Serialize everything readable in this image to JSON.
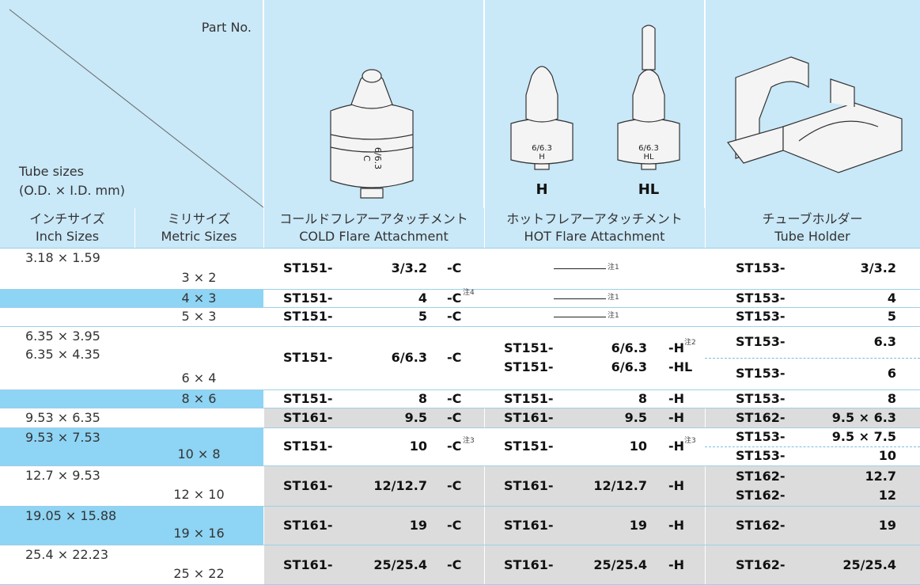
{
  "header": {
    "part_no": "Part No.",
    "tube_sizes": [
      "Tube sizes",
      "(O.D. × I.D. mm)"
    ],
    "cold_image": [
      "6/6.3",
      "C"
    ],
    "hot_image": [
      [
        "6/6.3",
        "H"
      ],
      [
        "6/6.3",
        "HL"
      ]
    ],
    "hot_captions": [
      "H",
      "HL"
    ]
  },
  "columns": [
    {
      "jp": "インチサイズ",
      "en": "Inch Sizes"
    },
    {
      "jp": "ミリサイズ",
      "en": "Metric Sizes"
    },
    {
      "jp": "コールドフレアーアタッチメント",
      "en": "COLD Flare Attachment"
    },
    {
      "jp": "ホットフレアーアタッチメント",
      "en": "HOT Flare Attachment"
    },
    {
      "jp": "チューブホルダー",
      "en": "Tube Holder"
    }
  ],
  "rows": [
    {
      "inch": [
        "3.18 × 1.59"
      ],
      "metric": "3 × 2",
      "cold": {
        "prefix": "ST151-",
        "size": "3/3.2",
        "suffix": "-C"
      },
      "hot": {
        "note": "注1"
      },
      "holder": [
        {
          "prefix": "ST153-",
          "size": "3/3.2"
        }
      ]
    },
    {
      "inch": [],
      "metric": "4 × 3",
      "cold": {
        "prefix": "ST151-",
        "size": "4",
        "suffix": "-C",
        "note": "注4"
      },
      "hot": {
        "note": "注1"
      },
      "holder": [
        {
          "prefix": "ST153-",
          "size": "4"
        }
      ]
    },
    {
      "inch": [],
      "metric": "5 × 3",
      "cold": {
        "prefix": "ST151-",
        "size": "5",
        "suffix": "-C"
      },
      "hot": {
        "note": "注1"
      },
      "holder": [
        {
          "prefix": "ST153-",
          "size": "5"
        }
      ]
    },
    {
      "inch": [
        "6.35 × 3.95",
        "6.35 × 4.35"
      ],
      "metric": "6 × 4",
      "cold": {
        "prefix": "ST151-",
        "size": "6/6.3",
        "suffix": "-C"
      },
      "hot": {
        "entries": [
          {
            "prefix": "ST151-",
            "size": "6/6.3",
            "suffix": "-H",
            "note": "注2"
          },
          {
            "prefix": "ST151-",
            "size": "6/6.3",
            "suffix": "-HL"
          }
        ]
      },
      "holder": [
        {
          "prefix": "ST153-",
          "size": "6.3"
        },
        {
          "prefix": "ST153-",
          "size": "6"
        }
      ]
    },
    {
      "inch": [],
      "metric": "8 × 6",
      "cold": {
        "prefix": "ST151-",
        "size": "8",
        "suffix": "-C"
      },
      "hot": {
        "entries": [
          {
            "prefix": "ST151-",
            "size": "8",
            "suffix": "-H"
          }
        ]
      },
      "holder": [
        {
          "prefix": "ST153-",
          "size": "8"
        }
      ]
    },
    {
      "inch": [
        "9.53 × 6.35"
      ],
      "metric": "",
      "cold": {
        "prefix": "ST161-",
        "size": "9.5",
        "suffix": "-C"
      },
      "hot": {
        "entries": [
          {
            "prefix": "ST161-",
            "size": "9.5",
            "suffix": "-H"
          }
        ]
      },
      "holder": [
        {
          "prefix": "ST162-",
          "size": "9.5 × 6.3"
        }
      ]
    },
    {
      "inch": [
        "9.53 × 7.53"
      ],
      "metric": "10 × 8",
      "cold": {
        "prefix": "ST151-",
        "size": "10",
        "suffix": "-C",
        "note": "注3"
      },
      "hot": {
        "entries": [
          {
            "prefix": "ST151-",
            "size": "10",
            "suffix": "-H",
            "note": "注3"
          }
        ]
      },
      "holder": [
        {
          "prefix": "ST153-",
          "size": "9.5 × 7.5"
        },
        {
          "prefix": "ST153-",
          "size": "10"
        }
      ]
    },
    {
      "inch": [
        "12.7 × 9.53"
      ],
      "metric": "12 × 10",
      "cold": {
        "prefix": "ST161-",
        "size": "12/12.7",
        "suffix": "-C"
      },
      "hot": {
        "entries": [
          {
            "prefix": "ST161-",
            "size": "12/12.7",
            "suffix": "-H"
          }
        ]
      },
      "holder": [
        {
          "prefix": "ST162-",
          "size": "12.7"
        },
        {
          "prefix": "ST162-",
          "size": "12"
        }
      ]
    },
    {
      "inch": [
        "19.05 × 15.88"
      ],
      "metric": "19 × 16",
      "cold": {
        "prefix": "ST161-",
        "size": "19",
        "suffix": "-C"
      },
      "hot": {
        "entries": [
          {
            "prefix": "ST161-",
            "size": "19",
            "suffix": "-H"
          }
        ]
      },
      "holder": [
        {
          "prefix": "ST162-",
          "size": "19"
        }
      ]
    },
    {
      "inch": [
        "25.4 × 22.23"
      ],
      "metric": "25 × 22",
      "cold": {
        "prefix": "ST161-",
        "size": "25/25.4",
        "suffix": "-C"
      },
      "hot": {
        "entries": [
          {
            "prefix": "ST161-",
            "size": "25/25.4",
            "suffix": "-H"
          }
        ]
      },
      "holder": [
        {
          "prefix": "ST162-",
          "size": "25/25.4"
        }
      ]
    }
  ]
}
